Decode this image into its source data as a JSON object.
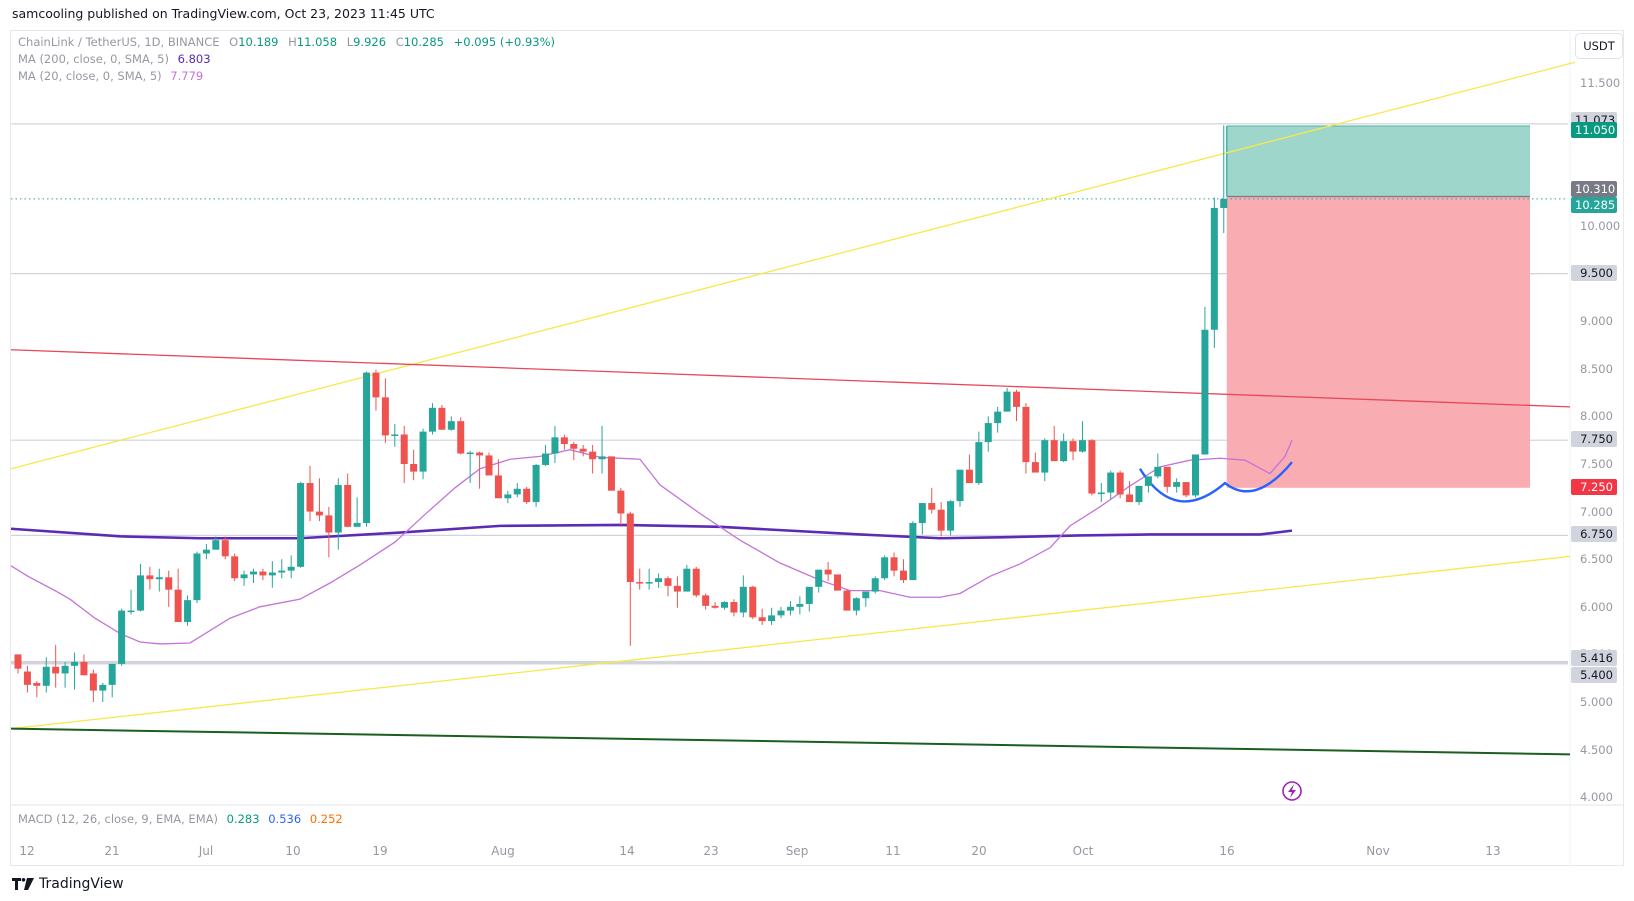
{
  "header": {
    "published": "samcooling published on TradingView.com, Oct 23, 2023 11:45 UTC"
  },
  "legend": {
    "symbol": "ChainLink / TetherUS, 1D, BINANCE",
    "open_label": "O",
    "open": "10.189",
    "high_label": "H",
    "high": "11.058",
    "low_label": "L",
    "low": "9.926",
    "close_label": "C",
    "close": "10.285",
    "change": "+0.095 (+0.93%)",
    "ma200_label": "MA (200, close, 0, SMA, 5)",
    "ma200_value": "6.803",
    "ma200_color": "#5b2bb5",
    "ma20_label": "MA (20, close, 0, SMA, 5)",
    "ma20_value": "7.779",
    "ma20_color": "#c274d8"
  },
  "macd": {
    "label": "MACD (12, 26, close, 9, EMA, EMA)",
    "macd": "0.283",
    "signal": "0.536",
    "hist": "0.252"
  },
  "price_axis": {
    "currency": "USDT",
    "ticks": [
      "11.500",
      "10.000",
      "9.000",
      "8.500",
      "8.000",
      "7.500",
      "7.000",
      "6.500",
      "6.000",
      "5.500",
      "5.000",
      "4.500",
      "4.000"
    ],
    "markers": [
      {
        "value": "11.073",
        "type": "line",
        "bg": "#d1d4dc",
        "fg": "#131722"
      },
      {
        "value": "11.050",
        "type": "target",
        "bg": "#089981",
        "fg": "#ffffff"
      },
      {
        "value": "10.310",
        "type": "entry",
        "bg": "#787b86",
        "fg": "#ffffff"
      },
      {
        "value": "10.285",
        "type": "last",
        "bg": "#26a69a",
        "fg": "#ffffff"
      },
      {
        "value": "9.500",
        "type": "line",
        "bg": "#d1d4dc",
        "fg": "#131722"
      },
      {
        "value": "7.750",
        "type": "line",
        "bg": "#d1d4dc",
        "fg": "#131722"
      },
      {
        "value": "7.250",
        "type": "stop",
        "bg": "#f23645",
        "fg": "#ffffff"
      },
      {
        "value": "6.750",
        "type": "line",
        "bg": "#d1d4dc",
        "fg": "#131722"
      },
      {
        "value": "5.416",
        "type": "line",
        "bg": "#d1d4dc",
        "fg": "#131722"
      },
      {
        "value": "5.400",
        "type": "line",
        "bg": "#d1d4dc",
        "fg": "#131722"
      }
    ]
  },
  "time_axis": {
    "labels": [
      "12",
      "21",
      "Jul",
      "10",
      "19",
      "Aug",
      "14",
      "23",
      "Sep",
      "11",
      "20",
      "Oct",
      "16",
      "Nov",
      "13"
    ]
  },
  "footer": {
    "brand": "TradingView"
  },
  "colors": {
    "up": "#26a69a",
    "down": "#ef5350",
    "ma200": "#5b2bb5",
    "ma20": "#c274d8",
    "trend_yellow": "#f5e94a",
    "resistance_red": "#e8475a",
    "support_green": "#1b5e20",
    "cup": "#2962ff",
    "profit_zone": "#9fd6cc",
    "loss_zone": "#f9acb2"
  },
  "chart_data": {
    "type": "candlestick",
    "title": "ChainLink / TetherUS, 1D, BINANCE",
    "xlabel": "",
    "ylabel": "USDT",
    "ylim": [
      4.0,
      11.6
    ],
    "x_tick_labels": [
      "12",
      "21",
      "Jul",
      "10",
      "19",
      "Aug",
      "14",
      "23",
      "Sep",
      "11",
      "20",
      "Oct",
      "16",
      "Nov",
      "13"
    ],
    "y_tick_labels": [
      "4.000",
      "4.500",
      "5.000",
      "5.500",
      "6.000",
      "6.500",
      "7.000",
      "7.500",
      "8.000",
      "8.500",
      "9.000",
      "9.500",
      "10.000",
      "11.500"
    ],
    "last_bar": {
      "open": 10.189,
      "high": 11.058,
      "low": 9.926,
      "close": 10.285,
      "change": 0.095,
      "change_pct": 0.93
    },
    "indicators": {
      "MA200": 6.803,
      "MA20": 7.779,
      "MACD": 0.283,
      "MACD_signal": 0.536,
      "MACD_hist": 0.252
    },
    "horizontal_levels": [
      11.073,
      9.5,
      7.75,
      6.75,
      5.416,
      5.4
    ],
    "position": {
      "entry": 10.31,
      "target": 11.05,
      "stop": 7.25
    },
    "candles_ohlc": [
      [
        5.5,
        5.5,
        5.3,
        5.35
      ],
      [
        5.32,
        5.38,
        5.1,
        5.18
      ],
      [
        5.2,
        5.22,
        5.05,
        5.17
      ],
      [
        5.17,
        5.47,
        5.1,
        5.37
      ],
      [
        5.37,
        5.6,
        5.15,
        5.3
      ],
      [
        5.3,
        5.42,
        5.15,
        5.38
      ],
      [
        5.38,
        5.52,
        5.13,
        5.42
      ],
      [
        5.42,
        5.5,
        5.3,
        5.28
      ],
      [
        5.3,
        5.34,
        5.0,
        5.12
      ],
      [
        5.12,
        5.2,
        5.0,
        5.18
      ],
      [
        5.18,
        5.4,
        5.05,
        5.4
      ],
      [
        5.4,
        5.98,
        5.38,
        5.96
      ],
      [
        5.96,
        6.18,
        5.92,
        5.96
      ],
      [
        5.96,
        6.45,
        5.95,
        6.33
      ],
      [
        6.33,
        6.42,
        6.18,
        6.29
      ],
      [
        6.29,
        6.4,
        6.16,
        6.31
      ],
      [
        6.31,
        6.38,
        6.0,
        6.18
      ],
      [
        6.18,
        6.4,
        5.85,
        5.84
      ],
      [
        5.84,
        6.12,
        5.8,
        6.07
      ],
      [
        6.07,
        6.58,
        6.04,
        6.56
      ],
      [
        6.56,
        6.66,
        6.5,
        6.6
      ],
      [
        6.6,
        6.74,
        6.6,
        6.7
      ],
      [
        6.7,
        6.74,
        6.5,
        6.53
      ],
      [
        6.53,
        6.56,
        6.27,
        6.3
      ],
      [
        6.3,
        6.38,
        6.22,
        6.34
      ],
      [
        6.34,
        6.4,
        6.25,
        6.37
      ],
      [
        6.37,
        6.4,
        6.28,
        6.33
      ],
      [
        6.33,
        6.48,
        6.2,
        6.36
      ],
      [
        6.36,
        6.5,
        6.3,
        6.38
      ],
      [
        6.38,
        6.54,
        6.3,
        6.42
      ],
      [
        6.42,
        7.31,
        6.41,
        7.3
      ],
      [
        7.3,
        7.48,
        6.9,
        7.0
      ],
      [
        7.0,
        7.35,
        6.9,
        6.96
      ],
      [
        6.96,
        7.05,
        6.52,
        6.78
      ],
      [
        6.78,
        7.35,
        6.6,
        7.28
      ],
      [
        7.28,
        7.4,
        6.84,
        6.84
      ],
      [
        6.84,
        7.15,
        6.85,
        6.88
      ],
      [
        6.88,
        8.47,
        6.84,
        8.46
      ],
      [
        8.46,
        8.49,
        8.06,
        8.2
      ],
      [
        8.2,
        8.4,
        7.72,
        7.8
      ],
      [
        7.8,
        7.92,
        7.68,
        7.81
      ],
      [
        7.81,
        7.9,
        7.3,
        7.5
      ],
      [
        7.5,
        7.65,
        7.33,
        7.42
      ],
      [
        7.42,
        7.87,
        7.34,
        7.84
      ],
      [
        7.84,
        8.14,
        7.81,
        8.09
      ],
      [
        8.09,
        8.12,
        7.86,
        7.86
      ],
      [
        7.86,
        8.0,
        7.85,
        7.95
      ],
      [
        7.95,
        7.99,
        7.6,
        7.61
      ],
      [
        7.61,
        7.64,
        7.3,
        7.62
      ],
      [
        7.62,
        7.63,
        7.24,
        7.59
      ],
      [
        7.59,
        7.62,
        7.4,
        7.38
      ],
      [
        7.38,
        7.55,
        7.26,
        7.14
      ],
      [
        7.14,
        7.22,
        7.09,
        7.18
      ],
      [
        7.18,
        7.3,
        7.15,
        7.24
      ],
      [
        7.24,
        7.26,
        7.08,
        7.1
      ],
      [
        7.1,
        7.5,
        7.05,
        7.49
      ],
      [
        7.49,
        7.7,
        7.48,
        7.61
      ],
      [
        7.61,
        7.9,
        7.51,
        7.78
      ],
      [
        7.78,
        7.81,
        7.65,
        7.71
      ],
      [
        7.71,
        7.73,
        7.54,
        7.66
      ],
      [
        7.66,
        7.7,
        7.58,
        7.63
      ],
      [
        7.63,
        7.7,
        7.4,
        7.55
      ],
      [
        7.55,
        7.9,
        7.4,
        7.58
      ],
      [
        7.58,
        7.58,
        7.22,
        7.22
      ],
      [
        7.22,
        7.25,
        6.86,
        6.98
      ],
      [
        6.98,
        7.0,
        5.59,
        6.26
      ],
      [
        6.26,
        6.4,
        6.18,
        6.25
      ],
      [
        6.25,
        6.4,
        6.18,
        6.26
      ],
      [
        6.26,
        6.35,
        6.2,
        6.3
      ],
      [
        6.3,
        6.32,
        6.11,
        6.22
      ],
      [
        6.22,
        6.32,
        5.99,
        6.16
      ],
      [
        6.16,
        6.44,
        6.16,
        6.4
      ],
      [
        6.4,
        6.42,
        6.1,
        6.12
      ],
      [
        6.12,
        6.14,
        5.97,
        6.01
      ],
      [
        6.01,
        6.05,
        5.98,
        5.99
      ],
      [
        5.99,
        6.06,
        5.97,
        6.05
      ],
      [
        6.05,
        6.08,
        5.9,
        5.94
      ],
      [
        5.94,
        6.33,
        5.89,
        6.21
      ],
      [
        6.21,
        6.22,
        5.87,
        5.89
      ],
      [
        5.89,
        5.98,
        5.81,
        5.85
      ],
      [
        5.85,
        5.99,
        5.81,
        5.91
      ],
      [
        5.91,
        6.0,
        5.88,
        5.96
      ],
      [
        5.96,
        6.06,
        5.91,
        6.0
      ],
      [
        6.0,
        6.11,
        5.92,
        6.03
      ],
      [
        6.03,
        6.15,
        5.95,
        6.21
      ],
      [
        6.21,
        6.38,
        6.15,
        6.39
      ],
      [
        6.39,
        6.47,
        6.27,
        6.34
      ],
      [
        6.34,
        6.32,
        6.2,
        6.17
      ],
      [
        6.17,
        6.18,
        6.0,
        5.96
      ],
      [
        5.96,
        6.1,
        5.91,
        6.09
      ],
      [
        6.09,
        6.14,
        6.0,
        6.16
      ],
      [
        6.16,
        6.32,
        6.14,
        6.3
      ],
      [
        6.3,
        6.54,
        6.28,
        6.52
      ],
      [
        6.52,
        6.57,
        6.32,
        6.38
      ],
      [
        6.38,
        6.5,
        6.25,
        6.28
      ],
      [
        6.28,
        6.9,
        6.29,
        6.88
      ],
      [
        6.88,
        7.0,
        6.76,
        7.09
      ],
      [
        7.09,
        7.25,
        6.98,
        7.02
      ],
      [
        7.02,
        7.1,
        6.74,
        6.8
      ],
      [
        6.8,
        7.12,
        6.75,
        7.11
      ],
      [
        7.11,
        7.44,
        7.05,
        7.44
      ],
      [
        7.44,
        7.6,
        7.35,
        7.3
      ],
      [
        7.3,
        7.84,
        7.28,
        7.73
      ],
      [
        7.73,
        8.0,
        7.63,
        7.93
      ],
      [
        7.93,
        8.1,
        7.83,
        8.05
      ],
      [
        8.05,
        8.3,
        8.05,
        8.26
      ],
      [
        8.26,
        8.28,
        7.95,
        8.1
      ],
      [
        8.1,
        8.14,
        7.4,
        7.52
      ],
      [
        7.52,
        7.62,
        7.44,
        7.41
      ],
      [
        7.41,
        7.77,
        7.32,
        7.75
      ],
      [
        7.75,
        7.9,
        7.6,
        7.53
      ],
      [
        7.53,
        7.82,
        7.52,
        7.74
      ],
      [
        7.74,
        7.77,
        7.54,
        7.63
      ],
      [
        7.63,
        7.95,
        7.62,
        7.75
      ],
      [
        7.75,
        7.76,
        7.17,
        7.19
      ],
      [
        7.19,
        7.3,
        7.1,
        7.2
      ],
      [
        7.2,
        7.43,
        7.13,
        7.41
      ],
      [
        7.41,
        7.43,
        7.14,
        7.18
      ],
      [
        7.18,
        7.32,
        7.12,
        7.1
      ],
      [
        7.1,
        7.27,
        7.07,
        7.27
      ],
      [
        7.27,
        7.37,
        7.2,
        7.37
      ],
      [
        7.37,
        7.61,
        7.35,
        7.47
      ],
      [
        7.47,
        7.45,
        7.2,
        7.26
      ],
      [
        7.26,
        7.35,
        7.2,
        7.31
      ],
      [
        7.31,
        7.31,
        7.15,
        7.17
      ],
      [
        7.17,
        7.58,
        7.15,
        7.6
      ],
      [
        7.6,
        9.15,
        7.6,
        8.91
      ],
      [
        8.91,
        10.3,
        8.72,
        10.19
      ],
      [
        10.189,
        11.058,
        9.926,
        10.285
      ]
    ],
    "trendlines": [
      {
        "name": "upper-yellow",
        "color": "#f5e94a",
        "from": [
          0,
          7.45
        ],
        "to": [
          1575,
          11.72
        ]
      },
      {
        "name": "lower-yellow",
        "color": "#f5e94a",
        "from": [
          0,
          4.72
        ],
        "to": [
          1570,
          6.53
        ]
      },
      {
        "name": "red-resistance",
        "color": "#e8475a",
        "from": [
          0,
          8.7
        ],
        "to": [
          1570,
          8.1
        ]
      },
      {
        "name": "green-support",
        "color": "#1b5e20",
        "from": [
          0,
          4.72
        ],
        "to": [
          1570,
          4.45
        ]
      }
    ]
  }
}
